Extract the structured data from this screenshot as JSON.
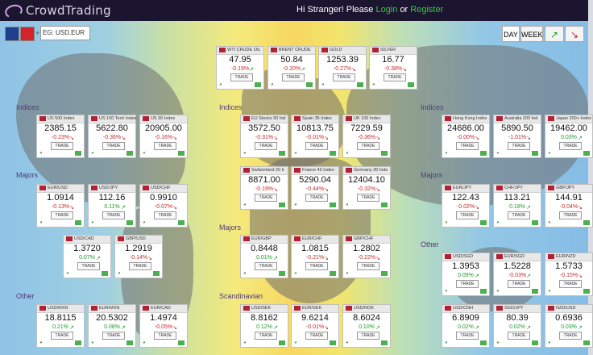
{
  "header": {
    "logo_text": "CrowdTrading",
    "greeting": "Hi Stranger!  Please",
    "login": "Login",
    "or": "or",
    "register": "Register"
  },
  "controls": {
    "search_placeholder": "EG: USD,EUR",
    "plus": "+",
    "day": "DAY",
    "week": "WEEK"
  },
  "sections": {
    "indices": "Indices",
    "majors": "Majors",
    "other": "Other",
    "scandinavian": "Scandinavian"
  },
  "trade_label": "TRADE",
  "commodities": [
    {
      "name": "WTI CRUDE OIL",
      "price": "47.95",
      "change": "-0.19%",
      "dir": "pos"
    },
    {
      "name": "BRENT CRUDE",
      "price": "50.84",
      "change": "-0.20%",
      "dir": "pos"
    },
    {
      "name": "GOLD",
      "price": "1253.39",
      "change": "-0.27%",
      "dir": "neg"
    },
    {
      "name": "SILVER",
      "price": "16.77",
      "change": "-0.38%",
      "dir": "neg"
    }
  ],
  "indices_left": [
    {
      "name": "US 500 Index",
      "price": "2385.15",
      "change": "-0.23%",
      "dir": "neg"
    },
    {
      "name": "US 100 Tech Index",
      "price": "5622.80",
      "change": "-0.36%",
      "dir": "neg"
    },
    {
      "name": "US 30 Index",
      "price": "20905.00",
      "change": "-0.16%",
      "dir": "neg"
    }
  ],
  "indices_mid": [
    {
      "name": "EU Stocks 50 Ind",
      "price": "3572.50",
      "change": "-0.31%",
      "dir": "neg"
    },
    {
      "name": "Spain 35 Index",
      "price": "10813.75",
      "change": "-0.01%",
      "dir": "neg"
    },
    {
      "name": "UK 100 Index",
      "price": "7229.59",
      "change": "-0.36%",
      "dir": "neg"
    },
    {
      "name": "Switzerland 20 Ir",
      "price": "8871.00",
      "change": "-0.19%",
      "dir": "neg"
    },
    {
      "name": "France 40 Index",
      "price": "5290.04",
      "change": "-0.44%",
      "dir": "neg"
    },
    {
      "name": "Germany 30 Inde",
      "price": "12404.10",
      "change": "-0.32%",
      "dir": "neg"
    }
  ],
  "indices_right": [
    {
      "name": "Hong Kong Index",
      "price": "24686.00",
      "change": "-0.00%",
      "dir": "neg"
    },
    {
      "name": "Australia 200 Ind",
      "price": "5890.50",
      "change": "-1.01%",
      "dir": "neg"
    },
    {
      "name": "Japan 200+ Index",
      "price": "19462.00",
      "change": "0.03%",
      "dir": "pos"
    }
  ],
  "majors_left": [
    {
      "name": "EUR/USD",
      "price": "1.0914",
      "change": "-0.13%",
      "dir": "neg"
    },
    {
      "name": "USD/JPY",
      "price": "112.16",
      "change": "0.11%",
      "dir": "pos"
    },
    {
      "name": "USD/CHF",
      "price": "0.9910",
      "change": "-0.07%",
      "dir": "neg"
    },
    {
      "name": "USD/CAD",
      "price": "1.3720",
      "change": "0.07%",
      "dir": "pos"
    },
    {
      "name": "GBP/USD",
      "price": "1.2919",
      "change": "-0.14%",
      "dir": "neg"
    }
  ],
  "majors_mid": [
    {
      "name": "EUR/GBP",
      "price": "0.8448",
      "change": "0.01%",
      "dir": "pos"
    },
    {
      "name": "EUR/CHF",
      "price": "1.0815",
      "change": "-0.21%",
      "dir": "neg"
    },
    {
      "name": "GBP/CHF",
      "price": "1.2802",
      "change": "-0.22%",
      "dir": "neg"
    }
  ],
  "majors_right": [
    {
      "name": "EUR/JPY",
      "price": "122.43",
      "change": "-0.02%",
      "dir": "neg"
    },
    {
      "name": "CHF/JPY",
      "price": "113.21",
      "change": "0.18%",
      "dir": "pos"
    },
    {
      "name": "GBP/JPY",
      "price": "144.91",
      "change": "-0.04%",
      "dir": "neg"
    }
  ],
  "other_right": [
    {
      "name": "USD/SGD",
      "price": "1.3953",
      "change": "0.09%",
      "dir": "pos"
    },
    {
      "name": "EUR/SGD",
      "price": "1.5228",
      "change": "-0.03%",
      "dir": "pos"
    },
    {
      "name": "EUR/NZD",
      "price": "1.5733",
      "change": "-0.15%",
      "dir": "neg"
    },
    {
      "name": "USD/CNH",
      "price": "6.8909",
      "change": "0.02%",
      "dir": "pos"
    },
    {
      "name": "SGD/JPY",
      "price": "80.39",
      "change": "0.02%",
      "dir": "pos"
    },
    {
      "name": "NZD/USD",
      "price": "0.6936",
      "change": "0.03%",
      "dir": "pos"
    }
  ],
  "other_left": [
    {
      "name": "USD/MXN",
      "price": "18.8115",
      "change": "0.21%",
      "dir": "pos"
    },
    {
      "name": "EUR/MXN",
      "price": "20.5302",
      "change": "0.08%",
      "dir": "pos"
    },
    {
      "name": "EUR/CAD",
      "price": "1.4974",
      "change": "-0.05%",
      "dir": "neg"
    }
  ],
  "scandinavian": [
    {
      "name": "USD/SEK",
      "price": "8.8162",
      "change": "0.12%",
      "dir": "pos"
    },
    {
      "name": "EUR/SEK",
      "price": "9.6214",
      "change": "-0.01%",
      "dir": "neg"
    },
    {
      "name": "USD/NOK",
      "price": "8.6024",
      "change": "0.10%",
      "dir": "pos"
    }
  ],
  "colors": {
    "topbar": "#1c1530",
    "link": "#2ecc3f",
    "negative": "#c42a2a",
    "positive": "#1f9a2a",
    "section": "#4e3a7a"
  }
}
